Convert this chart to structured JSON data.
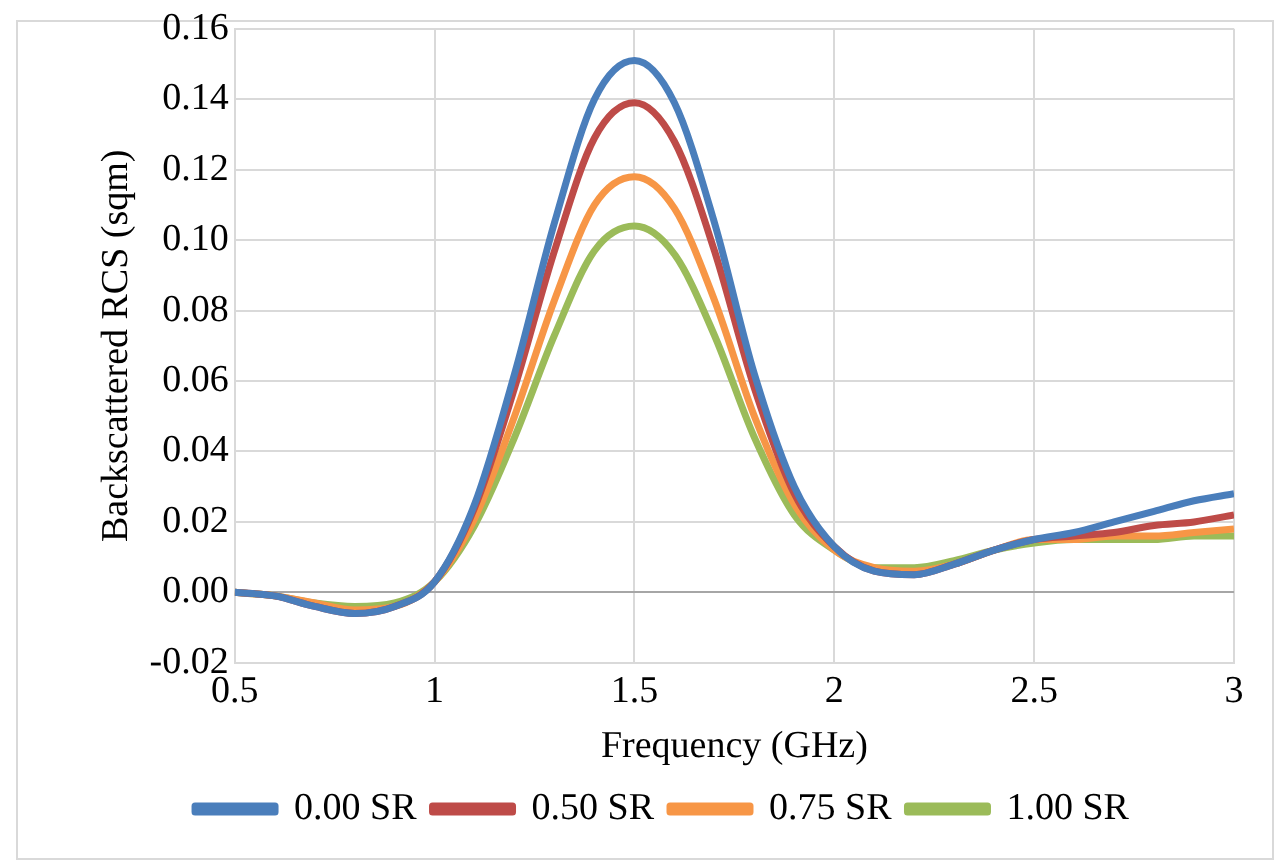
{
  "chart_data": {
    "type": "line",
    "xlabel": "Frequency (GHz)",
    "ylabel": "Backscattered RCS (sqm)",
    "x": [
      0.5,
      0.6,
      0.7,
      0.8,
      0.9,
      1.0,
      1.1,
      1.2,
      1.3,
      1.4,
      1.5,
      1.6,
      1.7,
      1.8,
      1.9,
      2.0,
      2.1,
      2.2,
      2.3,
      2.4,
      2.5,
      2.6,
      2.7,
      2.8,
      2.9,
      3.0
    ],
    "series": [
      {
        "name": "0.00 SR",
        "color": "#4a7ebb",
        "values": [
          0,
          -0.001,
          -0.004,
          -0.006,
          -0.004,
          0.003,
          0.025,
          0.062,
          0.105,
          0.14,
          0.151,
          0.139,
          0.105,
          0.062,
          0.03,
          0.013,
          0.006,
          0.005,
          0.008,
          0.012,
          0.015,
          0.017,
          0.02,
          0.023,
          0.026,
          0.028
        ]
      },
      {
        "name": "0.50 SR",
        "color": "#be4b48",
        "values": [
          0,
          -0.001,
          -0.004,
          -0.006,
          -0.004,
          0.003,
          0.024,
          0.058,
          0.097,
          0.129,
          0.139,
          0.128,
          0.097,
          0.058,
          0.028,
          0.013,
          0.006,
          0.005,
          0.008,
          0.012,
          0.015,
          0.016,
          0.017,
          0.019,
          0.02,
          0.022
        ]
      },
      {
        "name": "0.75 SR",
        "color": "#f79646",
        "values": [
          0,
          -0.001,
          -0.003,
          -0.005,
          -0.004,
          0.003,
          0.021,
          0.05,
          0.083,
          0.11,
          0.118,
          0.109,
          0.083,
          0.05,
          0.025,
          0.012,
          0.007,
          0.006,
          0.008,
          0.012,
          0.015,
          0.015,
          0.016,
          0.016,
          0.017,
          0.018
        ]
      },
      {
        "name": "1.00 SR",
        "color": "#9bbb59",
        "values": [
          0,
          -0.001,
          -0.003,
          -0.004,
          -0.003,
          0.003,
          0.019,
          0.044,
          0.073,
          0.097,
          0.104,
          0.096,
          0.073,
          0.044,
          0.022,
          0.012,
          0.007,
          0.007,
          0.009,
          0.012,
          0.014,
          0.015,
          0.015,
          0.015,
          0.016,
          0.016
        ]
      }
    ],
    "xlim": [
      0.5,
      3
    ],
    "xticks": [
      0.5,
      1,
      1.5,
      2,
      2.5,
      3
    ],
    "ylim": [
      -0.02,
      0.16
    ],
    "yticks": [
      {
        "value": -0.02,
        "label": "-0.02"
      },
      {
        "value": 0,
        "label": "0.00"
      },
      {
        "value": 0.02,
        "label": "0.02"
      },
      {
        "value": 0.04,
        "label": "0.04"
      },
      {
        "value": 0.06,
        "label": "0.06"
      },
      {
        "value": 0.08,
        "label": "0.08"
      },
      {
        "value": 0.1,
        "label": "0.10"
      },
      {
        "value": 0.12,
        "label": "0.12"
      },
      {
        "value": 0.14,
        "label": "0.14"
      },
      {
        "value": 0.16,
        "label": "0.16"
      }
    ],
    "grid": true,
    "legend": "bottom",
    "marker": "none",
    "line_style": "solid"
  }
}
